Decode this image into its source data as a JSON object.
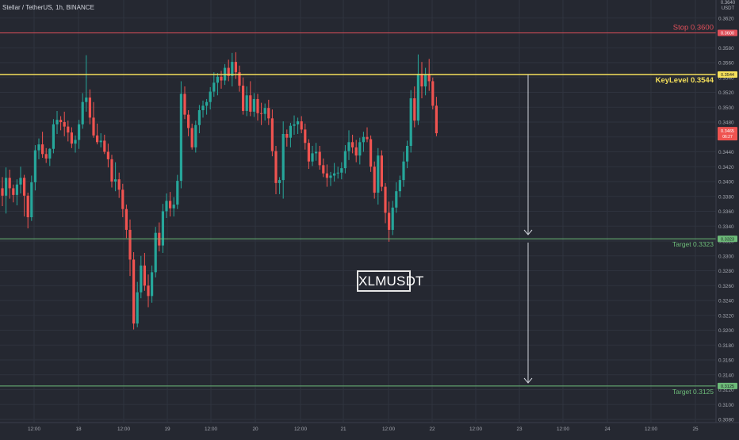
{
  "header": {
    "symbol": "Stellar / TetherUS, 1h, BINANCE"
  },
  "watermark": "XLMUSDT",
  "price_axis": {
    "unit_top": "0.3640",
    "unit_bottom": "USDT",
    "ticks": [
      "0.3620",
      "0.3600",
      "0.3580",
      "0.3560",
      "0.3540",
      "0.3520",
      "0.3500",
      "0.3480",
      "0.3460",
      "0.3440",
      "0.3420",
      "0.3400",
      "0.3380",
      "0.3360",
      "0.3340",
      "0.3320",
      "0.3300",
      "0.3280",
      "0.3260",
      "0.3240",
      "0.3220",
      "0.3200",
      "0.3180",
      "0.3160",
      "0.3140",
      "0.3120",
      "0.3100",
      "0.3080"
    ],
    "last_price": "0.3465",
    "last_price_sub": "06:27"
  },
  "time_axis": {
    "labels": [
      "12:00",
      "18",
      "12:00",
      "19",
      "12:00",
      "20",
      "12:00",
      "21",
      "12:00",
      "22",
      "12:00",
      "23",
      "12:00",
      "24",
      "12:00",
      "25"
    ]
  },
  "levels": [
    {
      "name": "stop",
      "label": "Stop 0.3600",
      "tag": "0.3600",
      "price": 0.36,
      "color": "#e0505a"
    },
    {
      "name": "keylevel",
      "label": "KeyLevel 0.3544",
      "tag": "0.3544",
      "price": 0.3544,
      "color": "#f5e05a"
    },
    {
      "name": "target-1",
      "label": "Target 0.3323",
      "tag": "0.3323",
      "price": 0.3323,
      "color": "#6dbb79"
    },
    {
      "name": "target-2",
      "label": "Target 0.3125",
      "tag": "0.3125",
      "price": 0.3125,
      "color": "#6dbb79"
    }
  ],
  "colors": {
    "up": "#26a69a",
    "down": "#ef5350",
    "background": "#252831",
    "grid": "#2f333e",
    "arrow": "#d1d4dc",
    "axis_text": "#a3a6af"
  },
  "chart_data": {
    "type": "candlestick",
    "title": "Stellar / TetherUS, 1h, BINANCE",
    "interval": "1h",
    "ylim": [
      0.308,
      0.364
    ],
    "candles": [
      [
        0.3391,
        0.3406,
        0.3367,
        0.3381
      ],
      [
        0.3381,
        0.3419,
        0.3357,
        0.3405
      ],
      [
        0.3405,
        0.3416,
        0.3377,
        0.3391
      ],
      [
        0.3391,
        0.3396,
        0.3372,
        0.3382
      ],
      [
        0.3382,
        0.3403,
        0.3368,
        0.3396
      ],
      [
        0.3396,
        0.342,
        0.3384,
        0.3405
      ],
      [
        0.3405,
        0.3409,
        0.3353,
        0.3381
      ],
      [
        0.3381,
        0.3385,
        0.3337,
        0.3352
      ],
      [
        0.3352,
        0.3408,
        0.3347,
        0.3399
      ],
      [
        0.3399,
        0.3449,
        0.3388,
        0.3442
      ],
      [
        0.3442,
        0.3458,
        0.343,
        0.345
      ],
      [
        0.345,
        0.3467,
        0.3432,
        0.3437
      ],
      [
        0.3437,
        0.3445,
        0.3425,
        0.3431
      ],
      [
        0.3431,
        0.3445,
        0.3421,
        0.3444
      ],
      [
        0.3444,
        0.3484,
        0.3438,
        0.3477
      ],
      [
        0.3477,
        0.3495,
        0.3464,
        0.3483
      ],
      [
        0.3483,
        0.3488,
        0.3469,
        0.348
      ],
      [
        0.348,
        0.3494,
        0.3461,
        0.3474
      ],
      [
        0.3474,
        0.3482,
        0.3454,
        0.3466
      ],
      [
        0.3466,
        0.3473,
        0.3445,
        0.3451
      ],
      [
        0.3451,
        0.3462,
        0.3439,
        0.3456
      ],
      [
        0.3456,
        0.3483,
        0.3444,
        0.3477
      ],
      [
        0.3477,
        0.3519,
        0.3471,
        0.3507
      ],
      [
        0.3507,
        0.357,
        0.3494,
        0.3513
      ],
      [
        0.3513,
        0.3524,
        0.3477,
        0.3486
      ],
      [
        0.3486,
        0.3507,
        0.3459,
        0.3462
      ],
      [
        0.3462,
        0.3478,
        0.345,
        0.3453
      ],
      [
        0.3453,
        0.3465,
        0.3446,
        0.3455
      ],
      [
        0.3455,
        0.3463,
        0.3437,
        0.344
      ],
      [
        0.344,
        0.3451,
        0.3419,
        0.343
      ],
      [
        0.343,
        0.3436,
        0.3392,
        0.34
      ],
      [
        0.34,
        0.3426,
        0.3387,
        0.3403
      ],
      [
        0.3403,
        0.3412,
        0.3378,
        0.3389
      ],
      [
        0.3389,
        0.3397,
        0.3352,
        0.3363
      ],
      [
        0.3363,
        0.3369,
        0.3324,
        0.3335
      ],
      [
        0.3335,
        0.3349,
        0.3273,
        0.3295
      ],
      [
        0.3295,
        0.3305,
        0.3201,
        0.3209
      ],
      [
        0.3209,
        0.3265,
        0.3204,
        0.3251
      ],
      [
        0.3251,
        0.33,
        0.3243,
        0.3287
      ],
      [
        0.3287,
        0.3304,
        0.3253,
        0.326
      ],
      [
        0.326,
        0.3275,
        0.3231,
        0.3246
      ],
      [
        0.3246,
        0.3287,
        0.3237,
        0.3278
      ],
      [
        0.3278,
        0.3339,
        0.3271,
        0.3331
      ],
      [
        0.3331,
        0.3345,
        0.3306,
        0.3314
      ],
      [
        0.3314,
        0.337,
        0.3304,
        0.336
      ],
      [
        0.336,
        0.3384,
        0.3351,
        0.3374
      ],
      [
        0.3374,
        0.3386,
        0.3353,
        0.3364
      ],
      [
        0.3364,
        0.3379,
        0.3353,
        0.3369
      ],
      [
        0.3369,
        0.3409,
        0.3363,
        0.3401
      ],
      [
        0.3401,
        0.3535,
        0.3391,
        0.3518
      ],
      [
        0.3518,
        0.3528,
        0.3484,
        0.349
      ],
      [
        0.349,
        0.3496,
        0.3461,
        0.3472
      ],
      [
        0.3472,
        0.3478,
        0.3443,
        0.3446
      ],
      [
        0.3446,
        0.3482,
        0.3439,
        0.3476
      ],
      [
        0.3476,
        0.3503,
        0.3465,
        0.3496
      ],
      [
        0.3496,
        0.3509,
        0.3486,
        0.3502
      ],
      [
        0.3502,
        0.3511,
        0.349,
        0.3507
      ],
      [
        0.3507,
        0.3527,
        0.3497,
        0.3521
      ],
      [
        0.3521,
        0.3547,
        0.3514,
        0.3533
      ],
      [
        0.3533,
        0.3546,
        0.3516,
        0.3541
      ],
      [
        0.3541,
        0.3549,
        0.3525,
        0.3536
      ],
      [
        0.3536,
        0.3558,
        0.353,
        0.3553
      ],
      [
        0.3553,
        0.3564,
        0.3535,
        0.3542
      ],
      [
        0.3542,
        0.3573,
        0.3528,
        0.3561
      ],
      [
        0.3561,
        0.3574,
        0.3538,
        0.3547
      ],
      [
        0.3547,
        0.3556,
        0.3521,
        0.3529
      ],
      [
        0.3529,
        0.354,
        0.349,
        0.3495
      ],
      [
        0.3495,
        0.3528,
        0.3488,
        0.3516
      ],
      [
        0.3516,
        0.3535,
        0.3488,
        0.3494
      ],
      [
        0.3494,
        0.3519,
        0.3487,
        0.3511
      ],
      [
        0.3511,
        0.3518,
        0.3482,
        0.3492
      ],
      [
        0.3492,
        0.3506,
        0.3476,
        0.3491
      ],
      [
        0.3491,
        0.3505,
        0.3482,
        0.3499
      ],
      [
        0.3499,
        0.351,
        0.3476,
        0.3485
      ],
      [
        0.3485,
        0.3497,
        0.3434,
        0.3441
      ],
      [
        0.3441,
        0.3448,
        0.3383,
        0.3398
      ],
      [
        0.3398,
        0.3406,
        0.3383,
        0.3402
      ],
      [
        0.3402,
        0.3481,
        0.3377,
        0.3464
      ],
      [
        0.3464,
        0.347,
        0.3447,
        0.3459
      ],
      [
        0.3459,
        0.3479,
        0.3446,
        0.3475
      ],
      [
        0.3475,
        0.3489,
        0.3463,
        0.3477
      ],
      [
        0.3477,
        0.3486,
        0.3464,
        0.3481
      ],
      [
        0.3481,
        0.3488,
        0.3465,
        0.347
      ],
      [
        0.347,
        0.3478,
        0.3443,
        0.3452
      ],
      [
        0.3452,
        0.3457,
        0.3417,
        0.3427
      ],
      [
        0.3427,
        0.3448,
        0.3421,
        0.3438
      ],
      [
        0.3438,
        0.3452,
        0.3428,
        0.344
      ],
      [
        0.344,
        0.3448,
        0.3416,
        0.3422
      ],
      [
        0.3422,
        0.3431,
        0.3406,
        0.3411
      ],
      [
        0.3411,
        0.3423,
        0.3393,
        0.3405
      ],
      [
        0.3405,
        0.3413,
        0.3394,
        0.3408
      ],
      [
        0.3408,
        0.3425,
        0.34,
        0.3411
      ],
      [
        0.3411,
        0.342,
        0.3404,
        0.3412
      ],
      [
        0.3412,
        0.3426,
        0.3403,
        0.3418
      ],
      [
        0.3418,
        0.3449,
        0.3411,
        0.3441
      ],
      [
        0.3441,
        0.3469,
        0.3429,
        0.3453
      ],
      [
        0.3453,
        0.3463,
        0.3438,
        0.3446
      ],
      [
        0.3446,
        0.3456,
        0.3426,
        0.3435
      ],
      [
        0.3435,
        0.3459,
        0.3423,
        0.3453
      ],
      [
        0.3453,
        0.3467,
        0.344,
        0.346
      ],
      [
        0.346,
        0.3473,
        0.3453,
        0.3457
      ],
      [
        0.3457,
        0.3462,
        0.3413,
        0.342
      ],
      [
        0.342,
        0.3427,
        0.3377,
        0.3385
      ],
      [
        0.3385,
        0.3445,
        0.3369,
        0.3435
      ],
      [
        0.3435,
        0.3442,
        0.3387,
        0.3393
      ],
      [
        0.3393,
        0.3398,
        0.3344,
        0.3358
      ],
      [
        0.3358,
        0.3373,
        0.3319,
        0.3335
      ],
      [
        0.3335,
        0.3374,
        0.3328,
        0.3365
      ],
      [
        0.3365,
        0.3399,
        0.3358,
        0.3387
      ],
      [
        0.3387,
        0.3408,
        0.3379,
        0.3402
      ],
      [
        0.3402,
        0.344,
        0.3393,
        0.3427
      ],
      [
        0.3427,
        0.3455,
        0.3418,
        0.3448
      ],
      [
        0.3448,
        0.3523,
        0.3439,
        0.3512
      ],
      [
        0.3512,
        0.3528,
        0.3473,
        0.3482
      ],
      [
        0.3482,
        0.3571,
        0.3476,
        0.3545
      ],
      [
        0.3545,
        0.3561,
        0.3512,
        0.3528
      ],
      [
        0.3528,
        0.3553,
        0.3516,
        0.3544
      ],
      [
        0.3544,
        0.3565,
        0.3522,
        0.3535
      ],
      [
        0.3535,
        0.354,
        0.3497,
        0.3502
      ],
      [
        0.3502,
        0.3514,
        0.3461,
        0.3465
      ]
    ]
  }
}
